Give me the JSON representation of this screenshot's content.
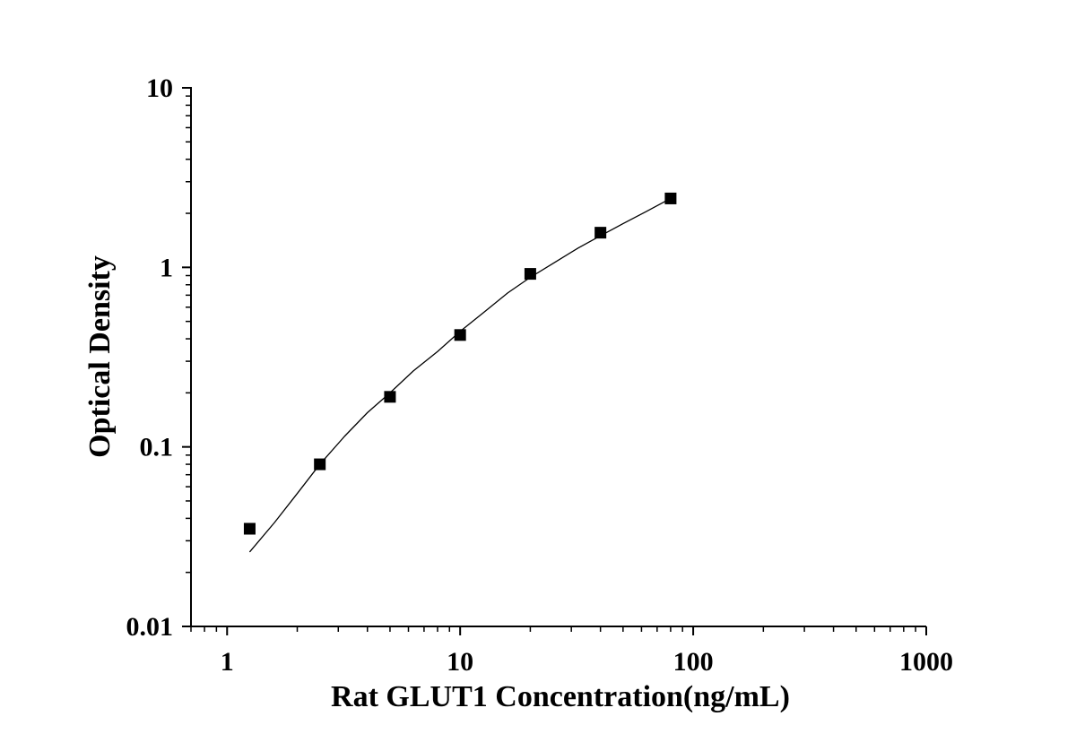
{
  "chart_data": {
    "type": "scatter",
    "title": "",
    "xlabel": "Rat GLUT1 Concentration(ng/mL)",
    "ylabel": "Optical Density",
    "x_scale": "log",
    "y_scale": "log",
    "xlim": [
      0.7,
      1000
    ],
    "ylim": [
      0.01,
      10
    ],
    "x_ticks": [
      1,
      10,
      100,
      1000
    ],
    "x_tick_labels": [
      "1",
      "10",
      "100",
      "1000"
    ],
    "y_ticks": [
      0.01,
      0.1,
      1,
      10
    ],
    "y_tick_labels": [
      "0.01",
      "0.1",
      "1",
      "10"
    ],
    "grid": false,
    "legend": "none",
    "series": [
      {
        "marker": "square",
        "color": "#000000",
        "x": [
          1.25,
          2.5,
          5,
          10,
          20,
          40,
          80
        ],
        "y": [
          0.035,
          0.08,
          0.19,
          0.42,
          0.92,
          1.56,
          2.42
        ]
      }
    ],
    "fit_curve": {
      "color": "#000000",
      "x": [
        1.25,
        1.6,
        2,
        2.5,
        3.2,
        4,
        5,
        6.3,
        8,
        10,
        12.6,
        16,
        20,
        25,
        32,
        40,
        50,
        63,
        80
      ],
      "y": [
        0.026,
        0.038,
        0.055,
        0.08,
        0.115,
        0.155,
        0.2,
        0.265,
        0.34,
        0.44,
        0.56,
        0.72,
        0.88,
        1.05,
        1.28,
        1.5,
        1.75,
        2.05,
        2.42
      ]
    }
  }
}
